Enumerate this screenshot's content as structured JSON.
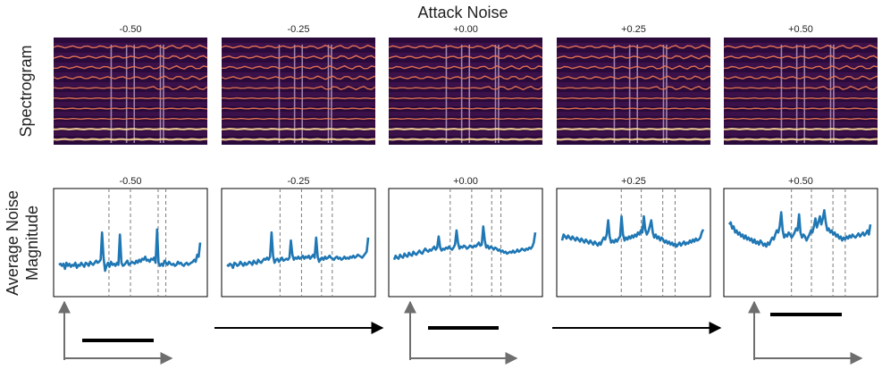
{
  "figure": {
    "title": "Attack Noise",
    "row_labels": {
      "spectrogram": "Spectrogram",
      "noise_line1": "Average Noise",
      "noise_line2": "Magnitude"
    },
    "panel_titles": [
      "-0.50",
      "-0.25",
      "+0.00",
      "+0.25",
      "+0.50"
    ]
  },
  "colors": {
    "line": "#1f77b4",
    "dashed": "#7a7a7a",
    "axes": "#000000",
    "arrow_gray": "#6e6e6e",
    "spec_bg": "#2a0a3a",
    "spec_harmonic": "#f07a55",
    "spec_hot": "#fcd49a"
  },
  "chart_data": [
    {
      "type": "line",
      "panel": "-0.50",
      "event_markers": [
        0.36,
        0.5,
        0.68,
        0.73
      ],
      "ylim": [
        0,
        1
      ],
      "y": [
        0.28,
        0.29,
        0.27,
        0.29,
        0.24,
        0.3,
        0.27,
        0.29,
        0.26,
        0.28,
        0.27,
        0.3,
        0.25,
        0.28,
        0.27,
        0.3,
        0.28,
        0.26,
        0.3,
        0.29,
        0.27,
        0.31,
        0.29,
        0.28,
        0.3,
        0.32,
        0.3,
        0.31,
        0.33,
        0.6,
        0.35,
        0.22,
        0.27,
        0.3,
        0.26,
        0.31,
        0.28,
        0.29,
        0.27,
        0.3,
        0.28,
        0.58,
        0.3,
        0.27,
        0.28,
        0.3,
        0.32,
        0.28,
        0.29,
        0.31,
        0.3,
        0.29,
        0.32,
        0.3,
        0.33,
        0.31,
        0.34,
        0.33,
        0.36,
        0.32,
        0.33,
        0.31,
        0.34,
        0.33,
        0.35,
        0.3,
        0.63,
        0.3,
        0.27,
        0.29,
        0.27,
        0.32,
        0.3,
        0.28,
        0.31,
        0.29,
        0.28,
        0.29,
        0.27,
        0.28,
        0.31,
        0.29,
        0.3,
        0.28,
        0.27,
        0.29,
        0.3,
        0.28,
        0.29,
        0.3,
        0.31,
        0.33,
        0.31,
        0.38,
        0.36,
        0.5
      ]
    },
    {
      "type": "line",
      "panel": "-0.25",
      "event_markers": [
        0.38,
        0.52,
        0.65,
        0.72
      ],
      "ylim": [
        0,
        1
      ],
      "y": [
        0.28,
        0.27,
        0.29,
        0.28,
        0.25,
        0.3,
        0.29,
        0.27,
        0.28,
        0.31,
        0.29,
        0.27,
        0.3,
        0.28,
        0.29,
        0.31,
        0.3,
        0.28,
        0.32,
        0.3,
        0.29,
        0.33,
        0.31,
        0.3,
        0.32,
        0.34,
        0.33,
        0.35,
        0.33,
        0.36,
        0.6,
        0.37,
        0.3,
        0.33,
        0.34,
        0.31,
        0.33,
        0.35,
        0.32,
        0.33,
        0.34,
        0.33,
        0.35,
        0.52,
        0.38,
        0.33,
        0.35,
        0.34,
        0.36,
        0.34,
        0.35,
        0.37,
        0.34,
        0.36,
        0.35,
        0.37,
        0.34,
        0.36,
        0.38,
        0.35,
        0.55,
        0.36,
        0.31,
        0.34,
        0.35,
        0.33,
        0.36,
        0.34,
        0.35,
        0.37,
        0.35,
        0.34,
        0.33,
        0.35,
        0.36,
        0.34,
        0.35,
        0.33,
        0.34,
        0.36,
        0.34,
        0.35,
        0.34,
        0.36,
        0.35,
        0.37,
        0.35,
        0.36,
        0.38,
        0.37,
        0.36,
        0.35,
        0.37,
        0.39,
        0.41,
        0.55
      ]
    },
    {
      "type": "line",
      "panel": "+0.00",
      "event_markers": [
        0.4,
        0.54,
        0.67,
        0.73
      ],
      "ylim": [
        0,
        1
      ],
      "y": [
        0.33,
        0.37,
        0.35,
        0.34,
        0.38,
        0.36,
        0.35,
        0.39,
        0.37,
        0.36,
        0.4,
        0.38,
        0.37,
        0.41,
        0.39,
        0.38,
        0.4,
        0.42,
        0.4,
        0.39,
        0.42,
        0.44,
        0.42,
        0.41,
        0.43,
        0.42,
        0.44,
        0.46,
        0.43,
        0.45,
        0.56,
        0.45,
        0.42,
        0.44,
        0.43,
        0.45,
        0.44,
        0.46,
        0.44,
        0.43,
        0.45,
        0.48,
        0.62,
        0.5,
        0.44,
        0.46,
        0.45,
        0.47,
        0.46,
        0.44,
        0.45,
        0.47,
        0.46,
        0.45,
        0.47,
        0.46,
        0.48,
        0.5,
        0.47,
        0.48,
        0.66,
        0.52,
        0.45,
        0.47,
        0.44,
        0.46,
        0.45,
        0.43,
        0.45,
        0.44,
        0.42,
        0.43,
        0.41,
        0.42,
        0.4,
        0.41,
        0.39,
        0.4,
        0.41,
        0.4,
        0.42,
        0.4,
        0.41,
        0.43,
        0.41,
        0.42,
        0.44,
        0.43,
        0.42,
        0.44,
        0.43,
        0.45,
        0.44,
        0.46,
        0.5,
        0.6
      ]
    },
    {
      "type": "line",
      "panel": "+0.25",
      "event_markers": [
        0.42,
        0.55,
        0.69,
        0.77
      ],
      "ylim": [
        0,
        1
      ],
      "y": [
        0.52,
        0.58,
        0.56,
        0.54,
        0.57,
        0.55,
        0.53,
        0.56,
        0.54,
        0.52,
        0.55,
        0.53,
        0.51,
        0.54,
        0.52,
        0.5,
        0.53,
        0.51,
        0.49,
        0.52,
        0.5,
        0.48,
        0.51,
        0.49,
        0.47,
        0.5,
        0.48,
        0.52,
        0.55,
        0.53,
        0.58,
        0.72,
        0.56,
        0.5,
        0.52,
        0.5,
        0.53,
        0.51,
        0.54,
        0.56,
        0.76,
        0.58,
        0.52,
        0.55,
        0.53,
        0.56,
        0.54,
        0.57,
        0.55,
        0.58,
        0.56,
        0.6,
        0.58,
        0.62,
        0.6,
        0.76,
        0.63,
        0.58,
        0.61,
        0.66,
        0.72,
        0.6,
        0.55,
        0.58,
        0.54,
        0.56,
        0.52,
        0.55,
        0.53,
        0.5,
        0.52,
        0.49,
        0.51,
        0.48,
        0.5,
        0.47,
        0.49,
        0.46,
        0.48,
        0.5,
        0.47,
        0.49,
        0.51,
        0.48,
        0.5,
        0.49,
        0.52,
        0.5,
        0.53,
        0.51,
        0.54,
        0.52,
        0.53,
        0.55,
        0.6,
        0.63
      ]
    },
    {
      "type": "line",
      "panel": "+0.50",
      "event_markers": [
        0.44,
        0.57,
        0.71,
        0.79
      ],
      "ylim": [
        0,
        1
      ],
      "y": [
        0.68,
        0.7,
        0.64,
        0.66,
        0.6,
        0.62,
        0.58,
        0.6,
        0.56,
        0.58,
        0.54,
        0.57,
        0.53,
        0.55,
        0.52,
        0.54,
        0.5,
        0.53,
        0.49,
        0.51,
        0.48,
        0.52,
        0.5,
        0.47,
        0.49,
        0.46,
        0.5,
        0.48,
        0.52,
        0.55,
        0.53,
        0.58,
        0.62,
        0.6,
        0.66,
        0.8,
        0.62,
        0.55,
        0.58,
        0.56,
        0.6,
        0.58,
        0.55,
        0.57,
        0.6,
        0.64,
        0.62,
        0.78,
        0.6,
        0.55,
        0.58,
        0.56,
        0.52,
        0.55,
        0.58,
        0.62,
        0.6,
        0.66,
        0.74,
        0.65,
        0.7,
        0.76,
        0.68,
        0.74,
        0.82,
        0.7,
        0.62,
        0.64,
        0.6,
        0.62,
        0.58,
        0.6,
        0.56,
        0.58,
        0.54,
        0.56,
        0.52,
        0.55,
        0.53,
        0.56,
        0.54,
        0.57,
        0.55,
        0.58,
        0.56,
        0.55,
        0.57,
        0.59,
        0.56,
        0.58,
        0.6,
        0.57,
        0.59,
        0.62,
        0.58,
        0.68
      ]
    }
  ]
}
